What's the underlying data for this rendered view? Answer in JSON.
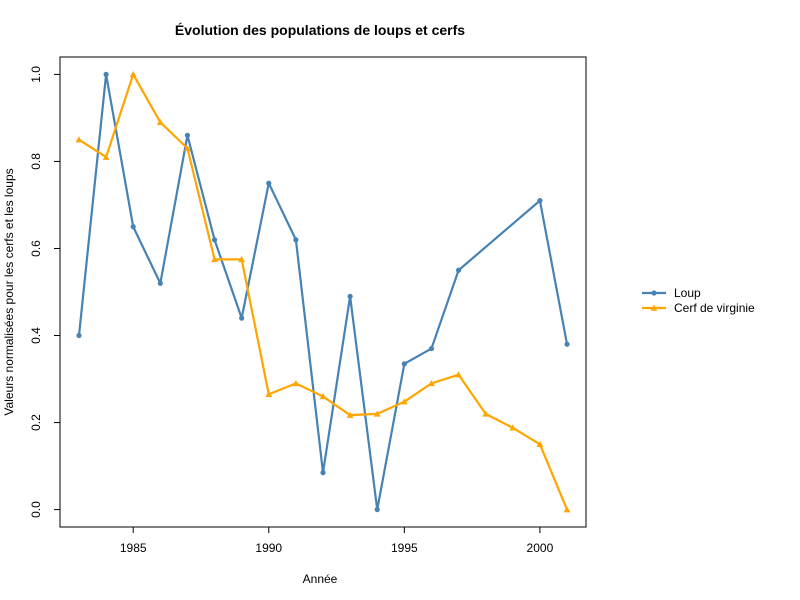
{
  "chart_data": {
    "type": "line",
    "title": "Évolution des populations de loups et cerfs",
    "xlabel": "Année",
    "ylabel": "Valeurs normalisées pour les cerfs et les loups",
    "xlim": [
      1982.3,
      2001.7
    ],
    "ylim": [
      -0.04,
      1.04
    ],
    "xticks": [
      1985,
      1990,
      1995,
      2000
    ],
    "yticks": [
      0.0,
      0.2,
      0.4,
      0.6,
      0.8,
      1.0
    ],
    "ytick_labels": [
      "0.0",
      "0.2",
      "0.4",
      "0.6",
      "0.8",
      "1.0"
    ],
    "legend_position": "right",
    "grid": false,
    "series": [
      {
        "name": "Loup",
        "color": "#4682B4",
        "marker": "circle",
        "x": [
          1983,
          1984,
          1985,
          1986,
          1987,
          1988,
          1989,
          1990,
          1991,
          1992,
          1993,
          1994,
          1995,
          1996,
          1997,
          2000,
          2001
        ],
        "y": [
          0.4,
          1.0,
          0.65,
          0.52,
          0.86,
          0.62,
          0.44,
          0.75,
          0.62,
          0.085,
          0.49,
          0.0,
          0.335,
          0.37,
          0.55,
          0.71,
          0.38
        ]
      },
      {
        "name": "Cerf de virginie",
        "color": "#FFA500",
        "marker": "triangle",
        "x": [
          1983,
          1984,
          1985,
          1986,
          1987,
          1988,
          1989,
          1990,
          1991,
          1992,
          1993,
          1994,
          1995,
          1996,
          1997,
          1998,
          1999,
          2000,
          2001
        ],
        "y": [
          0.85,
          0.81,
          1.0,
          0.89,
          0.83,
          0.575,
          0.575,
          0.265,
          0.29,
          0.26,
          0.217,
          0.22,
          0.248,
          0.29,
          0.31,
          0.22,
          0.188,
          0.15,
          0.0
        ]
      }
    ]
  }
}
